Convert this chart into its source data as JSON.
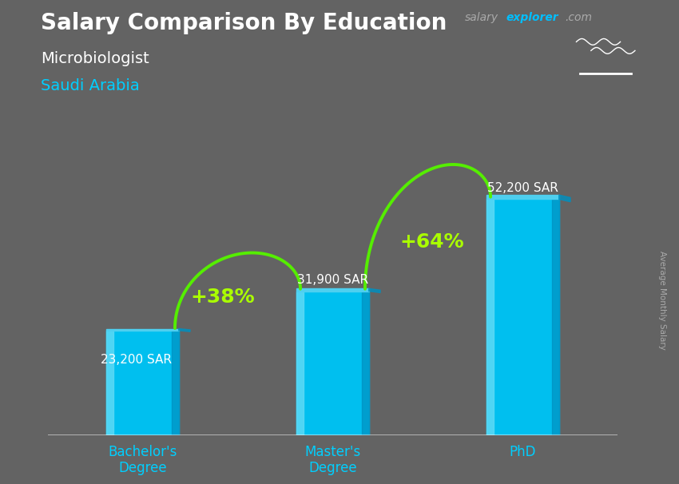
{
  "title_main": "Salary Comparison By Education",
  "subtitle1": "Microbiologist",
  "subtitle2": "Saudi Arabia",
  "categories": [
    "Bachelor's\nDegree",
    "Master's\nDegree",
    "PhD"
  ],
  "values": [
    23200,
    31900,
    52200
  ],
  "value_labels": [
    "23,200 SAR",
    "31,900 SAR",
    "52,200 SAR"
  ],
  "pct_labels": [
    "+38%",
    "+64%"
  ],
  "bar_face_color": "#00BFEF",
  "bar_left_color": "#5DDAF5",
  "bar_right_color": "#0090C0",
  "bar_top_color": "#4ECFEF",
  "background_color": "#636363",
  "title_color": "#FFFFFF",
  "subtitle1_color": "#FFFFFF",
  "subtitle2_color": "#00CFFF",
  "xticklabel_color": "#00CFFF",
  "value_label_color": "#FFFFFF",
  "pct_color": "#AAFF00",
  "arrow_color": "#55EE00",
  "brand_salary_color": "#AAAAAA",
  "brand_explorer_color": "#00BFFF",
  "brand_com_color": "#AAAAAA",
  "ylabel_text": "Average Monthly Salary",
  "ylabel_color": "#AAAAAA",
  "flag_bg": "#2E8B30",
  "bar_width": 0.38,
  "depth": 0.06,
  "ylim": [
    0,
    62000
  ],
  "xlim": [
    -0.5,
    2.5
  ]
}
